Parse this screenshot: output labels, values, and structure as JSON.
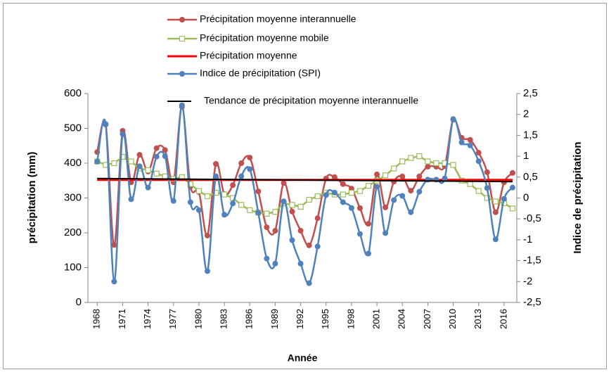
{
  "chart_data": {
    "type": "line",
    "x_label": "Année",
    "y_label": "précipitation (mm)",
    "y2_label": "Indice de précipitation",
    "x": [
      1968,
      1969,
      1970,
      1971,
      1972,
      1973,
      1974,
      1975,
      1976,
      1977,
      1978,
      1979,
      1980,
      1981,
      1982,
      1983,
      1984,
      1985,
      1986,
      1987,
      1988,
      1989,
      1990,
      1991,
      1992,
      1993,
      1994,
      1995,
      1996,
      1997,
      1998,
      1999,
      2000,
      2001,
      2002,
      2003,
      2004,
      2005,
      2006,
      2007,
      2008,
      2009,
      2010,
      2011,
      2012,
      2013,
      2014,
      2015,
      2016,
      2017
    ],
    "xlim": [
      1966.9,
      2017.5
    ],
    "xticks": [
      1968,
      1971,
      1974,
      1977,
      1980,
      1983,
      1986,
      1989,
      1992,
      1995,
      1998,
      2001,
      2004,
      2007,
      2010,
      2013,
      2016
    ],
    "ylim": [
      0,
      600
    ],
    "yticks": [
      0,
      100,
      200,
      300,
      400,
      500,
      600
    ],
    "y2lim": [
      -2.5,
      2.5
    ],
    "y2ticks": [
      {
        "value": -2.5,
        "label": "-2,5"
      },
      -2,
      {
        "value": -1.5,
        "label": "-1,5"
      },
      -1,
      {
        "value": -0.5,
        "label": "-0,5"
      },
      0,
      {
        "value": 0.5,
        "label": "0,5"
      },
      1,
      {
        "value": 1.5,
        "label": "1,5"
      },
      2,
      {
        "value": 2.5,
        "label": "2,5"
      }
    ],
    "series": [
      {
        "name": "Précipitation moyenne interannuelle",
        "color": "#c0504d",
        "marker": "circle",
        "smooth": true,
        "values": [
          432,
          511,
          165,
          493,
          345,
          424,
          376,
          443,
          438,
          345,
          562,
          333,
          317,
          192,
          398,
          311,
          337,
          400,
          416,
          319,
          216,
          206,
          343,
          261,
          206,
          164,
          242,
          356,
          360,
          340,
          327,
          271,
          226,
          368,
          273,
          347,
          362,
          321,
          362,
          390,
          390,
          392,
          525,
          473,
          467,
          430,
          374,
          259,
          345,
          372
        ]
      },
      {
        "name": "Précipitation moyenne mobile",
        "color": "#9bbb59",
        "marker": "square",
        "smooth": false,
        "values": [
          405,
          395,
          400,
          418,
          405,
          385,
          380,
          370,
          362,
          355,
          360,
          340,
          320,
          305,
          315,
          310,
          300,
          280,
          265,
          258,
          255,
          260,
          285,
          280,
          275,
          295,
          305,
          315,
          310,
          310,
          315,
          320,
          335,
          350,
          365,
          385,
          405,
          415,
          420,
          405,
          400,
          400,
          395,
          350,
          340,
          320,
          300,
          290,
          285,
          270
        ]
      },
      {
        "name": "Précipitation moyenne",
        "color": "#ff0000",
        "marker": "none",
        "smooth": false,
        "width": 3,
        "values": [
          352,
          352,
          352,
          352,
          352,
          352,
          352,
          352,
          352,
          352,
          352,
          352,
          352,
          352,
          352,
          352,
          352,
          352,
          352,
          352,
          352,
          352,
          352,
          352,
          352,
          352,
          352,
          352,
          352,
          352,
          352,
          352,
          352,
          352,
          352,
          352,
          352,
          352,
          352,
          352,
          352,
          352,
          352,
          352,
          352,
          352,
          352,
          352,
          352,
          352
        ]
      },
      {
        "name": "Indice de précipitation (SPI)",
        "color": "#4f81bd",
        "marker": "circle",
        "smooth": true,
        "axis": "y2",
        "values": [
          0.87,
          1.77,
          -2.0,
          1.53,
          -0.03,
          0.76,
          0.25,
          0.99,
          1.0,
          -0.07,
          2.22,
          -0.1,
          -0.29,
          -1.75,
          0.52,
          -0.4,
          -0.13,
          0.52,
          0.69,
          -0.35,
          -1.45,
          -1.57,
          -0.08,
          -1.01,
          -1.57,
          -2.04,
          -1.16,
          0.07,
          0.13,
          -0.1,
          -0.24,
          -0.86,
          -1.33,
          0.27,
          -0.84,
          -0.05,
          0.05,
          -0.34,
          0.15,
          0.44,
          0.44,
          0.47,
          1.89,
          1.33,
          1.26,
          0.88,
          0.24,
          -0.99,
          -0.02,
          0.25
        ]
      },
      {
        "name": "Tendance de précipitation moyenne interannuelle",
        "color": "#000000",
        "marker": "none",
        "smooth": false,
        "width": 2,
        "x": [
          1968,
          2017
        ],
        "values": [
          356,
          347
        ]
      }
    ]
  }
}
